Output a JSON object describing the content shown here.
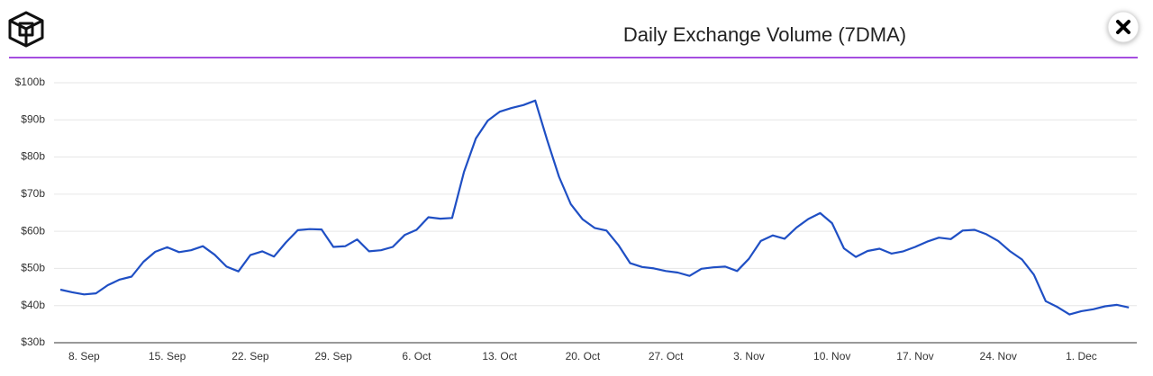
{
  "chart_data": {
    "type": "line",
    "title": "Daily Exchange Volume (7DMA)",
    "categories": [
      null,
      null,
      "8. Sep",
      null,
      null,
      null,
      null,
      null,
      null,
      "15. Sep",
      null,
      null,
      null,
      null,
      null,
      null,
      "22. Sep",
      null,
      null,
      null,
      null,
      null,
      null,
      "29. Sep",
      null,
      null,
      null,
      null,
      null,
      null,
      "6. Oct",
      null,
      null,
      null,
      null,
      null,
      null,
      "13. Oct",
      null,
      null,
      null,
      null,
      null,
      null,
      "20. Oct",
      null,
      null,
      null,
      null,
      null,
      null,
      "27. Oct",
      null,
      null,
      null,
      null,
      null,
      null,
      "3. Nov",
      null,
      null,
      null,
      null,
      null,
      null,
      "10. Nov",
      null,
      null,
      null,
      null,
      null,
      null,
      "17. Nov",
      null,
      null,
      null,
      null,
      null,
      null,
      "24. Nov",
      null,
      null,
      null,
      null,
      null,
      null,
      "1. Dec",
      null,
      null,
      null,
      null
    ],
    "series": [
      {
        "color": "#1f4fc4",
        "values": [
          44.3,
          43.6,
          43,
          43.3,
          45.5,
          47,
          47.8,
          51.8,
          54.5,
          55.7,
          54.4,
          54.9,
          56,
          53.7,
          50.5,
          49.2,
          53.6,
          54.6,
          53.2,
          57,
          60.3,
          60.6,
          60.5,
          55.8,
          56,
          57.8,
          54.6,
          54.9,
          55.8,
          59,
          60.4,
          63.8,
          63.4,
          63.6,
          76,
          85,
          89.8,
          92.2,
          93.2,
          94,
          95.2,
          84.6,
          74.7,
          67.3,
          63.2,
          60.9,
          60.2,
          56.3,
          51.4,
          50.4,
          50,
          49.3,
          48.9,
          48,
          49.9,
          50.3,
          50.5,
          49.3,
          52.6,
          57.4,
          58.9,
          58,
          61,
          63.3,
          64.9,
          62.2,
          55.4,
          53.1,
          54.7,
          55.3,
          54,
          54.6,
          55.8,
          57.2,
          58.3,
          57.9,
          60.2,
          60.4,
          59.2,
          57.4,
          54.6,
          52.4,
          48.3,
          41.2,
          39.6,
          37.6,
          38.5,
          39,
          39.8,
          40.2,
          39.5
        ]
      }
    ],
    "ylim": [
      30,
      100
    ],
    "yticks": [
      {
        "value": 30,
        "label": "$30b"
      },
      {
        "value": 40,
        "label": "$40b"
      },
      {
        "value": 50,
        "label": "$50b"
      },
      {
        "value": 60,
        "label": "$60b"
      },
      {
        "value": 70,
        "label": "$70b"
      },
      {
        "value": 80,
        "label": "$80b"
      },
      {
        "value": 90,
        "label": "$90b"
      },
      {
        "value": 100,
        "label": "$100b"
      }
    ],
    "grid": true
  }
}
